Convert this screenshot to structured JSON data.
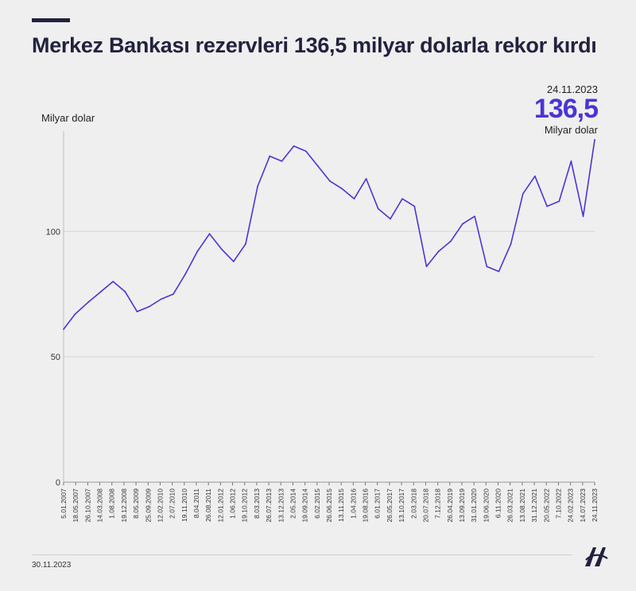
{
  "title": "Merkez Bankası rezervleri 136,5 milyar dolarla rekor kırdı",
  "callout": {
    "date": "24.11.2023",
    "value": "136,5",
    "unit": "Milyar dolar"
  },
  "footer": {
    "date": "30.11.2023",
    "logo": "AA"
  },
  "colors": {
    "line": "#4a35d4",
    "title": "#22223f",
    "background": "#efefef",
    "grid": "#d6d6d6"
  },
  "chart_data": {
    "type": "line",
    "ylabel": "Milyar dolar",
    "ylim": [
      0,
      140
    ],
    "yticks": [
      0,
      50,
      100
    ],
    "grid": true,
    "xticks": [
      "5.01.2007",
      "18.05.2007",
      "26.10.2007",
      "14.03.2008",
      "1.08.2008",
      "19.12.2008",
      "8.05.2009",
      "25.09.2009",
      "12.02.2010",
      "2.07.2010",
      "19.11.2010",
      "8.04.2011",
      "26.08.2011",
      "12.01.2012",
      "1.06.2012",
      "19.10.2012",
      "8.03.2013",
      "26.07.2013",
      "13.12.2013",
      "2.05.2014",
      "19.09.2014",
      "6.02.2015",
      "26.06.2015",
      "13.11.2015",
      "1.04.2016",
      "19.08.2016",
      "6.01.2017",
      "26.05.2017",
      "13.10.2017",
      "2.03.2018",
      "20.07.2018",
      "7.12.2018",
      "26.04.2019",
      "13.09.2019",
      "31.01.2020",
      "19.06.2020",
      "6.11.2020",
      "26.03.2021",
      "13.08.2021",
      "31.12.2021",
      "20.05.2022",
      "7.10.2022",
      "24.02.2023",
      "14.07.2023",
      "24.11.2023"
    ],
    "series": [
      {
        "x": [
          "2007-01-05",
          "2007-05-18",
          "2007-10-26",
          "2008-03-14",
          "2008-08-01",
          "2008-12-19",
          "2009-05-08",
          "2009-09-25",
          "2010-02-12",
          "2010-07-02",
          "2010-11-19",
          "2011-04-08",
          "2011-08-26",
          "2012-01-12",
          "2012-06-01",
          "2012-10-19",
          "2013-03-08",
          "2013-07-26",
          "2013-12-13",
          "2014-05-02",
          "2014-09-19",
          "2015-02-06",
          "2015-06-26",
          "2015-11-13",
          "2016-04-01",
          "2016-08-19",
          "2017-01-06",
          "2017-05-26",
          "2017-10-13",
          "2018-03-02",
          "2018-07-20",
          "2018-12-07",
          "2019-04-26",
          "2019-09-13",
          "2020-01-31",
          "2020-06-19",
          "2020-11-06",
          "2021-03-26",
          "2021-08-13",
          "2021-12-31",
          "2022-05-20",
          "2022-10-07",
          "2023-02-24",
          "2023-07-14",
          "2023-11-24"
        ],
        "values": [
          61,
          67,
          72,
          76,
          80,
          76,
          68,
          70,
          73,
          75,
          83,
          92,
          99,
          93,
          88,
          95,
          118,
          130,
          128,
          134,
          132,
          126,
          120,
          117,
          113,
          121,
          109,
          105,
          113,
          110,
          86,
          92,
          96,
          103,
          106,
          86,
          84,
          95,
          115,
          122,
          110,
          112,
          128,
          106,
          136.5
        ]
      }
    ]
  }
}
